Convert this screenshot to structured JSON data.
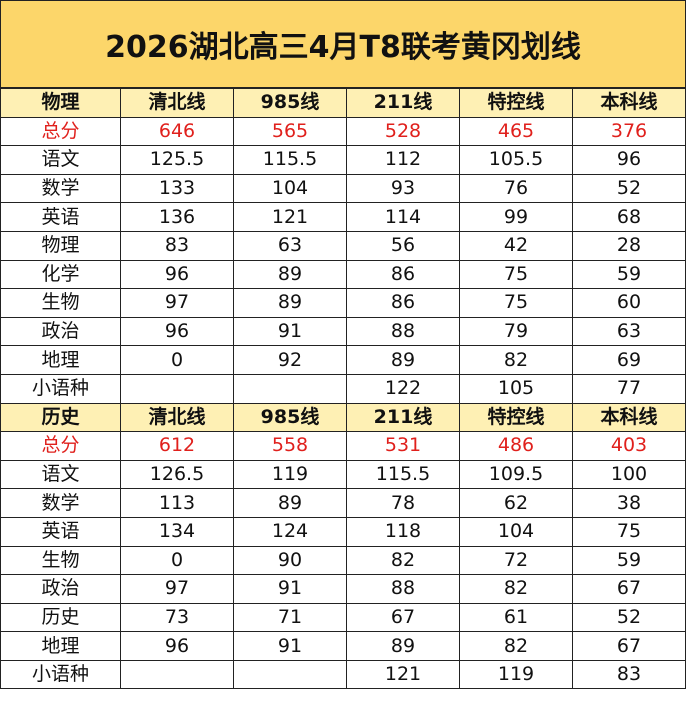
{
  "title": "2026湖北高三4月T8联考黄冈划线",
  "sections": [
    {
      "header": [
        "物理",
        "清北线",
        "985线",
        "211线",
        "特控线",
        "本科线"
      ],
      "rows": [
        {
          "label": "总分",
          "values": [
            646,
            565,
            528,
            465,
            376
          ]
        },
        {
          "label": "语文",
          "values": [
            125.5,
            115.5,
            112,
            105.5,
            96
          ]
        },
        {
          "label": "数学",
          "values": [
            133,
            104,
            93,
            76,
            52
          ]
        },
        {
          "label": "英语",
          "values": [
            136,
            121,
            114,
            99,
            68
          ]
        },
        {
          "label": "物理",
          "values": [
            83,
            63,
            56,
            42,
            28
          ]
        },
        {
          "label": "化学",
          "values": [
            96,
            89,
            86,
            75,
            59
          ]
        },
        {
          "label": "生物",
          "values": [
            97,
            89,
            86,
            75,
            60
          ]
        },
        {
          "label": "政治",
          "values": [
            96,
            91,
            88,
            79,
            63
          ]
        },
        {
          "label": "地理",
          "values": [
            0,
            92,
            89,
            82,
            69
          ]
        },
        {
          "label": "小语种",
          "values": [
            null,
            null,
            122,
            105,
            77
          ]
        }
      ]
    },
    {
      "header": [
        "历史",
        "清北线",
        "985线",
        "211线",
        "特控线",
        "本科线"
      ],
      "rows": [
        {
          "label": "总分",
          "values": [
            612,
            558,
            531,
            486,
            403
          ]
        },
        {
          "label": "语文",
          "values": [
            126.5,
            119,
            115.5,
            109.5,
            100
          ]
        },
        {
          "label": "数学",
          "values": [
            113,
            89,
            78,
            62,
            38
          ]
        },
        {
          "label": "英语",
          "values": [
            134,
            124,
            118,
            104,
            75
          ]
        },
        {
          "label": "生物",
          "values": [
            0,
            90,
            82,
            72,
            59
          ]
        },
        {
          "label": "政治",
          "values": [
            97,
            91,
            88,
            82,
            67
          ]
        },
        {
          "label": "历史",
          "values": [
            73,
            71,
            67,
            61,
            52
          ]
        },
        {
          "label": "地理",
          "values": [
            96,
            91,
            89,
            82,
            67
          ]
        },
        {
          "label": "小语种",
          "values": [
            null,
            null,
            121,
            119,
            83
          ]
        }
      ]
    }
  ]
}
